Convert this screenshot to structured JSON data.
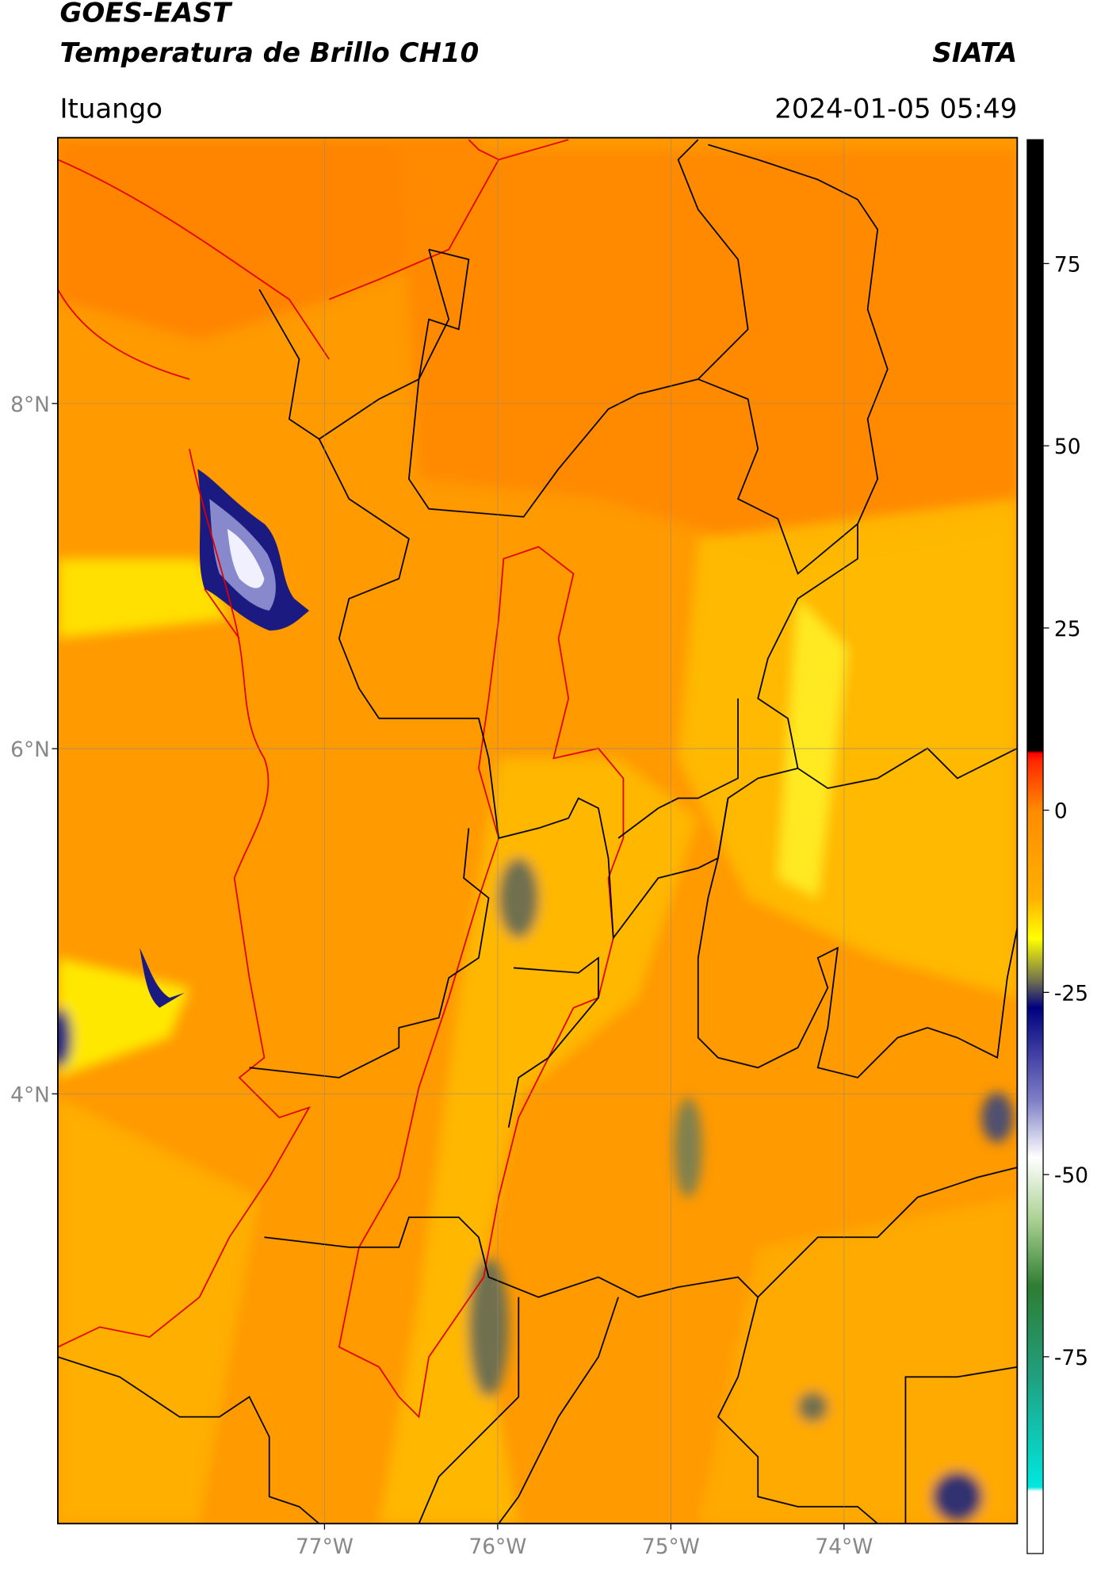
{
  "header": {
    "title": "GOES-EAST",
    "subtitle": "Temperatura de Brillo CH10",
    "source": "SIATA",
    "location": "Ituango",
    "datetime": "2024-01-05 05:49"
  },
  "map": {
    "xlim": [
      -78.54,
      -73.0
    ],
    "ylim": [
      1.51,
      9.54
    ],
    "xticks": [
      {
        "value": -77,
        "label": "77°W"
      },
      {
        "value": -76,
        "label": "76°W"
      },
      {
        "value": -75,
        "label": "75°W"
      },
      {
        "value": -74,
        "label": "74°W"
      }
    ],
    "yticks": [
      {
        "value": 8,
        "label": "8°N"
      },
      {
        "value": 6,
        "label": "6°N"
      },
      {
        "value": 4,
        "label": "4°N"
      }
    ],
    "grid": true
  },
  "colorbar": {
    "lim": [
      -102,
      92
    ],
    "ticks": [
      75,
      50,
      25,
      0,
      -25,
      -50,
      -75
    ]
  }
}
